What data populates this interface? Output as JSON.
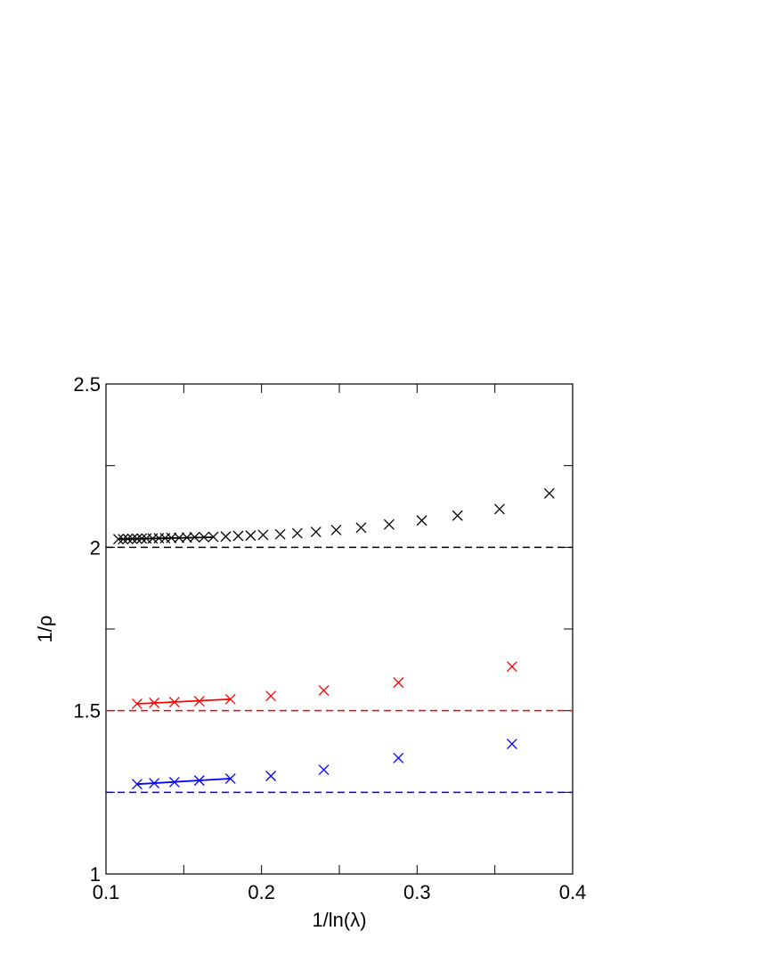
{
  "chart_data": {
    "type": "scatter",
    "xlabel": "1/ln(λ)",
    "ylabel": "1/ρ",
    "xlim": [
      0.1,
      0.4
    ],
    "xticks": [
      0.1,
      0.2,
      0.3,
      0.4
    ],
    "xminorticks": [
      0.15,
      0.25,
      0.35
    ],
    "ylim": [
      1,
      2.5
    ],
    "yticks": [
      1,
      1.5,
      2,
      2.5
    ],
    "yminorticks": [
      1.25,
      1.75,
      2.25
    ],
    "series": [
      {
        "color": "#000000",
        "style": "marker",
        "x": [
          0.108,
          0.111,
          0.114,
          0.117,
          0.12,
          0.123,
          0.126,
          0.13,
          0.134,
          0.138,
          0.142,
          0.147,
          0.152,
          0.157,
          0.163,
          0.169,
          0.177,
          0.185,
          0.193,
          0.201,
          0.212,
          0.223,
          0.235,
          0.248,
          0.264,
          0.282,
          0.303,
          0.326,
          0.353,
          0.385
        ],
        "values": [
          2.025,
          2.025,
          2.026,
          2.026,
          2.026,
          2.027,
          2.027,
          2.027,
          2.028,
          2.028,
          2.029,
          2.029,
          2.03,
          2.031,
          2.031,
          2.032,
          2.033,
          2.035,
          2.036,
          2.038,
          2.04,
          2.043,
          2.047,
          2.053,
          2.06,
          2.07,
          2.082,
          2.097,
          2.117,
          2.165
        ]
      },
      {
        "color": "#000000",
        "style": "solid",
        "x": [
          0.108,
          0.169
        ],
        "values": [
          2.025,
          2.031
        ]
      },
      {
        "color": "#000000",
        "style": "dashed",
        "x": [
          0.1,
          0.4
        ],
        "values": [
          2,
          2
        ]
      },
      {
        "color": "#ff0000",
        "style": "marker",
        "x": [
          0.12,
          0.131,
          0.144,
          0.16,
          0.18,
          0.206,
          0.24,
          0.288,
          0.361
        ],
        "values": [
          1.521,
          1.524,
          1.526,
          1.529,
          1.535,
          1.545,
          1.562,
          1.586,
          1.635
        ]
      },
      {
        "color": "#ff0000",
        "style": "solid",
        "x": [
          0.12,
          0.18
        ],
        "values": [
          1.521,
          1.535
        ]
      },
      {
        "color": "#ff0000",
        "style": "dashed",
        "x": [
          0.1,
          0.4
        ],
        "values": [
          1.5,
          1.5
        ]
      },
      {
        "color": "#0000ff",
        "style": "marker",
        "x": [
          0.12,
          0.131,
          0.144,
          0.16,
          0.18,
          0.206,
          0.24,
          0.288,
          0.361
        ],
        "values": [
          1.275,
          1.278,
          1.281,
          1.286,
          1.292,
          1.3,
          1.319,
          1.355,
          1.398
        ]
      },
      {
        "color": "#0000ff",
        "style": "solid",
        "x": [
          0.12,
          0.18
        ],
        "values": [
          1.275,
          1.292
        ]
      },
      {
        "color": "#0000ff",
        "style": "dashed",
        "x": [
          0.1,
          0.4
        ],
        "values": [
          1.25,
          1.25
        ]
      }
    ]
  }
}
